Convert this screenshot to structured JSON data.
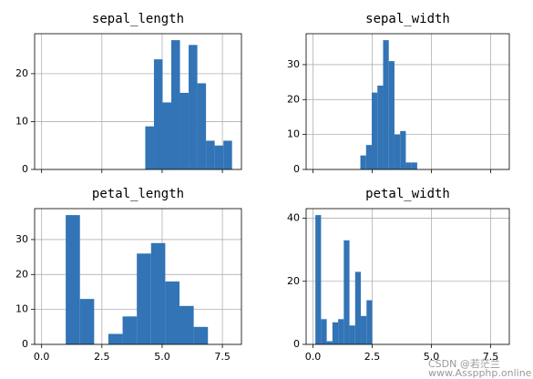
{
  "chart_data": [
    {
      "type": "histogram",
      "title": "sepal_length",
      "bins": [
        4.3,
        4.66,
        5.02,
        5.38,
        5.74,
        6.1,
        6.46,
        6.82,
        7.18,
        7.54,
        7.9
      ],
      "values": [
        9,
        23,
        14,
        27,
        16,
        26,
        18,
        6,
        5,
        6
      ],
      "color": "#3274b5",
      "xlim": [
        -0.29,
        8.29
      ],
      "ylim": [
        0,
        28.35
      ],
      "xticks": [
        0,
        2.5,
        5,
        7.5
      ],
      "yticks": [
        0,
        10,
        20
      ],
      "grid": true
    },
    {
      "type": "histogram",
      "title": "sepal_width",
      "bins": [
        2.0,
        2.24,
        2.48,
        2.72,
        2.96,
        3.2,
        3.44,
        3.68,
        3.92,
        4.16,
        4.4
      ],
      "values": [
        4,
        7,
        22,
        24,
        37,
        31,
        10,
        11,
        2,
        2
      ],
      "color": "#3274b5",
      "xlim": [
        -0.29,
        8.29
      ],
      "ylim": [
        0,
        38.85
      ],
      "xticks": [
        0,
        2.5,
        5,
        7.5
      ],
      "yticks": [
        0,
        10,
        20,
        30
      ],
      "grid": true
    },
    {
      "type": "histogram",
      "title": "petal_length",
      "bins": [
        1.0,
        1.59,
        2.18,
        2.77,
        3.36,
        3.95,
        4.54,
        5.13,
        5.72,
        6.31,
        6.9
      ],
      "values": [
        37,
        13,
        0,
        3,
        8,
        26,
        29,
        18,
        11,
        5
      ],
      "color": "#3274b5",
      "xlim": [
        -0.29,
        8.29
      ],
      "ylim": [
        0,
        38.85
      ],
      "xticks": [
        {
          "value": 0,
          "label": "0.0"
        },
        {
          "value": 2.5,
          "label": "2.5"
        },
        {
          "value": 5,
          "label": "5.0"
        },
        {
          "value": 7.5,
          "label": "7.5"
        }
      ],
      "yticks": [
        0,
        10,
        20,
        30
      ],
      "grid": true
    },
    {
      "type": "histogram",
      "title": "petal_width",
      "bins": [
        0.1,
        0.34,
        0.58,
        0.82,
        1.06,
        1.3,
        1.54,
        1.78,
        2.02,
        2.26,
        2.5
      ],
      "values": [
        41,
        8,
        1,
        7,
        8,
        33,
        6,
        23,
        9,
        14
      ],
      "color": "#3274b5",
      "xlim": [
        -0.29,
        8.29
      ],
      "ylim": [
        0,
        43.05
      ],
      "xticks": [
        {
          "value": 0,
          "label": "0.0"
        },
        {
          "value": 2.5,
          "label": "2.5"
        },
        {
          "value": 5,
          "label": "5.0"
        },
        {
          "value": 7.5,
          "label": "7.5"
        }
      ],
      "yticks": [
        0,
        20,
        40
      ],
      "grid": true
    }
  ],
  "watermark": {
    "author": "CSDN @若茫兰",
    "site": "www.Asspphp.online"
  }
}
